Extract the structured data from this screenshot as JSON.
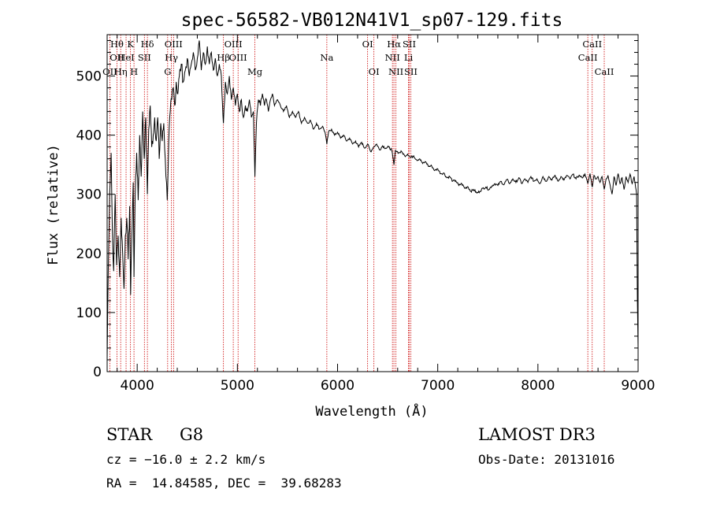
{
  "chart_data": {
    "type": "line",
    "title": "spec-56582-VB012N41V1_sp07-129.fits",
    "xlabel": "Wavelength (Å)",
    "ylabel": "Flux (relative)",
    "xlim": [
      3700,
      9000
    ],
    "ylim": [
      0,
      570
    ],
    "x_ticks": [
      4000,
      5000,
      6000,
      7000,
      8000,
      9000
    ],
    "y_ticks": [
      0,
      100,
      200,
      300,
      400,
      500
    ],
    "series": [
      {
        "name": "flux",
        "points": [
          [
            3700,
            20
          ],
          [
            3710,
            160
          ],
          [
            3725,
            300
          ],
          [
            3740,
            370
          ],
          [
            3752,
            240
          ],
          [
            3765,
            170
          ],
          [
            3780,
            300
          ],
          [
            3795,
            180
          ],
          [
            3810,
            230
          ],
          [
            3825,
            160
          ],
          [
            3840,
            260
          ],
          [
            3855,
            200
          ],
          [
            3868,
            140
          ],
          [
            3882,
            230
          ],
          [
            3896,
            260
          ],
          [
            3910,
            190
          ],
          [
            3925,
            280
          ],
          [
            3934,
            130
          ],
          [
            3945,
            220
          ],
          [
            3960,
            320
          ],
          [
            3968,
            160
          ],
          [
            3980,
            300
          ],
          [
            3995,
            370
          ],
          [
            4010,
            290
          ],
          [
            4025,
            400
          ],
          [
            4040,
            330
          ],
          [
            4055,
            440
          ],
          [
            4070,
            360
          ],
          [
            4085,
            430
          ],
          [
            4102,
            300
          ],
          [
            4115,
            410
          ],
          [
            4130,
            450
          ],
          [
            4145,
            380
          ],
          [
            4160,
            400
          ],
          [
            4175,
            430
          ],
          [
            4190,
            390
          ],
          [
            4205,
            430
          ],
          [
            4220,
            360
          ],
          [
            4235,
            420
          ],
          [
            4250,
            390
          ],
          [
            4265,
            420
          ],
          [
            4280,
            360
          ],
          [
            4300,
            290
          ],
          [
            4315,
            390
          ],
          [
            4330,
            440
          ],
          [
            4345,
            460
          ],
          [
            4360,
            480
          ],
          [
            4375,
            450
          ],
          [
            4390,
            490
          ],
          [
            4405,
            470
          ],
          [
            4420,
            500
          ],
          [
            4440,
            520
          ],
          [
            4460,
            490
          ],
          [
            4480,
            510
          ],
          [
            4500,
            530
          ],
          [
            4520,
            500
          ],
          [
            4540,
            520
          ],
          [
            4560,
            540
          ],
          [
            4580,
            510
          ],
          [
            4600,
            530
          ],
          [
            4620,
            560
          ],
          [
            4640,
            510
          ],
          [
            4660,
            540
          ],
          [
            4680,
            520
          ],
          [
            4700,
            550
          ],
          [
            4720,
            520
          ],
          [
            4740,
            540
          ],
          [
            4760,
            510
          ],
          [
            4780,
            530
          ],
          [
            4800,
            500
          ],
          [
            4820,
            520
          ],
          [
            4840,
            500
          ],
          [
            4861,
            420
          ],
          [
            4880,
            490
          ],
          [
            4900,
            470
          ],
          [
            4920,
            500
          ],
          [
            4940,
            460
          ],
          [
            4960,
            480
          ],
          [
            4980,
            450
          ],
          [
            5000,
            470
          ],
          [
            5020,
            440
          ],
          [
            5040,
            460
          ],
          [
            5060,
            430
          ],
          [
            5080,
            450
          ],
          [
            5100,
            440
          ],
          [
            5120,
            460
          ],
          [
            5140,
            430
          ],
          [
            5160,
            440
          ],
          [
            5175,
            330
          ],
          [
            5190,
            420
          ],
          [
            5210,
            460
          ],
          [
            5230,
            450
          ],
          [
            5250,
            470
          ],
          [
            5270,
            450
          ],
          [
            5290,
            460
          ],
          [
            5310,
            440
          ],
          [
            5330,
            460
          ],
          [
            5350,
            470
          ],
          [
            5370,
            450
          ],
          [
            5400,
            460
          ],
          [
            5430,
            450
          ],
          [
            5460,
            440
          ],
          [
            5490,
            450
          ],
          [
            5520,
            430
          ],
          [
            5550,
            440
          ],
          [
            5580,
            430
          ],
          [
            5610,
            440
          ],
          [
            5640,
            420
          ],
          [
            5670,
            430
          ],
          [
            5700,
            420
          ],
          [
            5730,
            425
          ],
          [
            5760,
            410
          ],
          [
            5790,
            420
          ],
          [
            5820,
            410
          ],
          [
            5850,
            415
          ],
          [
            5875,
            405
          ],
          [
            5893,
            385
          ],
          [
            5910,
            405
          ],
          [
            5940,
            410
          ],
          [
            5970,
            400
          ],
          [
            6000,
            405
          ],
          [
            6030,
            395
          ],
          [
            6060,
            400
          ],
          [
            6090,
            390
          ],
          [
            6120,
            395
          ],
          [
            6150,
            385
          ],
          [
            6180,
            390
          ],
          [
            6210,
            380
          ],
          [
            6240,
            388
          ],
          [
            6270,
            378
          ],
          [
            6300,
            385
          ],
          [
            6330,
            372
          ],
          [
            6360,
            380
          ],
          [
            6390,
            385
          ],
          [
            6420,
            375
          ],
          [
            6450,
            382
          ],
          [
            6480,
            378
          ],
          [
            6510,
            380
          ],
          [
            6540,
            375
          ],
          [
            6563,
            350
          ],
          [
            6580,
            375
          ],
          [
            6610,
            370
          ],
          [
            6640,
            372
          ],
          [
            6670,
            365
          ],
          [
            6700,
            368
          ],
          [
            6730,
            362
          ],
          [
            6760,
            365
          ],
          [
            6790,
            358
          ],
          [
            6820,
            360
          ],
          [
            6850,
            352
          ],
          [
            6880,
            355
          ],
          [
            6910,
            347
          ],
          [
            6940,
            348
          ],
          [
            6970,
            340
          ],
          [
            7000,
            343
          ],
          [
            7030,
            335
          ],
          [
            7060,
            336
          ],
          [
            7090,
            328
          ],
          [
            7120,
            330
          ],
          [
            7150,
            322
          ],
          [
            7180,
            323
          ],
          [
            7210,
            315
          ],
          [
            7240,
            318
          ],
          [
            7270,
            310
          ],
          [
            7300,
            313
          ],
          [
            7330,
            305
          ],
          [
            7360,
            308
          ],
          [
            7390,
            302
          ],
          [
            7420,
            305
          ],
          [
            7450,
            310
          ],
          [
            7480,
            312
          ],
          [
            7510,
            308
          ],
          [
            7540,
            314
          ],
          [
            7570,
            318
          ],
          [
            7600,
            315
          ],
          [
            7630,
            322
          ],
          [
            7660,
            316
          ],
          [
            7690,
            325
          ],
          [
            7720,
            318
          ],
          [
            7750,
            326
          ],
          [
            7780,
            320
          ],
          [
            7810,
            328
          ],
          [
            7840,
            318
          ],
          [
            7870,
            326
          ],
          [
            7900,
            320
          ],
          [
            7930,
            330
          ],
          [
            7960,
            322
          ],
          [
            7990,
            326
          ],
          [
            8020,
            318
          ],
          [
            8050,
            330
          ],
          [
            8080,
            322
          ],
          [
            8110,
            330
          ],
          [
            8140,
            324
          ],
          [
            8170,
            332
          ],
          [
            8200,
            322
          ],
          [
            8230,
            330
          ],
          [
            8260,
            324
          ],
          [
            8290,
            332
          ],
          [
            8320,
            326
          ],
          [
            8350,
            334
          ],
          [
            8380,
            326
          ],
          [
            8410,
            332
          ],
          [
            8440,
            328
          ],
          [
            8470,
            334
          ],
          [
            8498,
            318
          ],
          [
            8520,
            335
          ],
          [
            8542,
            312
          ],
          [
            8560,
            332
          ],
          [
            8580,
            326
          ],
          [
            8600,
            330
          ],
          [
            8620,
            320
          ],
          [
            8640,
            330
          ],
          [
            8662,
            308
          ],
          [
            8680,
            326
          ],
          [
            8700,
            332
          ],
          [
            8720,
            316
          ],
          [
            8740,
            300
          ],
          [
            8760,
            330
          ],
          [
            8780,
            315
          ],
          [
            8800,
            335
          ],
          [
            8820,
            318
          ],
          [
            8840,
            328
          ],
          [
            8860,
            308
          ],
          [
            8880,
            330
          ],
          [
            8900,
            320
          ],
          [
            8920,
            334
          ],
          [
            8940,
            318
          ],
          [
            8960,
            330
          ],
          [
            8975,
            312
          ],
          [
            8985,
            300
          ],
          [
            8993,
            120
          ],
          [
            9000,
            40
          ]
        ]
      }
    ],
    "line_markers": [
      {
        "wavelength": 3727,
        "labels": [
          {
            "text": "OII",
            "row": 2
          }
        ]
      },
      {
        "wavelength": 3798,
        "labels": [
          {
            "text": "Hθ",
            "row": 0
          },
          {
            "text": "OII",
            "row": 1
          }
        ]
      },
      {
        "wavelength": 3835,
        "labels": [
          {
            "text": "Hη",
            "row": 2
          }
        ]
      },
      {
        "wavelength": 3889,
        "labels": [
          {
            "text": "HeI",
            "row": 1
          }
        ]
      },
      {
        "wavelength": 3933,
        "labels": [
          {
            "text": "K",
            "row": 0
          }
        ]
      },
      {
        "wavelength": 3968,
        "labels": [
          {
            "text": "H",
            "row": 2
          }
        ]
      },
      {
        "wavelength": 4072,
        "labels": [
          {
            "text": "SII",
            "row": 1
          }
        ]
      },
      {
        "wavelength": 4102,
        "labels": [
          {
            "text": "Hδ",
            "row": 0
          }
        ]
      },
      {
        "wavelength": 4304,
        "labels": [
          {
            "text": "G",
            "row": 2
          }
        ]
      },
      {
        "wavelength": 4341,
        "labels": [
          {
            "text": "Hγ",
            "row": 1
          }
        ]
      },
      {
        "wavelength": 4363,
        "labels": [
          {
            "text": "OIII",
            "row": 0
          }
        ]
      },
      {
        "wavelength": 4861,
        "labels": [
          {
            "text": "Hβ",
            "row": 1
          }
        ]
      },
      {
        "wavelength": 4959,
        "labels": [
          {
            "text": "OIII",
            "row": 0
          }
        ]
      },
      {
        "wavelength": 5007,
        "labels": [
          {
            "text": "OIII",
            "row": 1
          }
        ]
      },
      {
        "wavelength": 5175,
        "labels": [
          {
            "text": "Mg",
            "row": 2
          }
        ]
      },
      {
        "wavelength": 5893,
        "labels": [
          {
            "text": "Na",
            "row": 1
          }
        ]
      },
      {
        "wavelength": 6300,
        "labels": [
          {
            "text": "OI",
            "row": 0
          }
        ]
      },
      {
        "wavelength": 6363,
        "labels": [
          {
            "text": "OI",
            "row": 2
          }
        ]
      },
      {
        "wavelength": 6548,
        "labels": [
          {
            "text": "NII",
            "row": 1
          }
        ]
      },
      {
        "wavelength": 6563,
        "labels": [
          {
            "text": "Hα",
            "row": 0
          }
        ]
      },
      {
        "wavelength": 6583,
        "labels": [
          {
            "text": "NII",
            "row": 2
          }
        ]
      },
      {
        "wavelength": 6708,
        "labels": [
          {
            "text": "Li",
            "row": 1
          }
        ]
      },
      {
        "wavelength": 6716,
        "labels": [
          {
            "text": "SII",
            "row": 0
          }
        ]
      },
      {
        "wavelength": 6731,
        "labels": [
          {
            "text": "SII",
            "row": 2
          }
        ]
      },
      {
        "wavelength": 8498,
        "labels": [
          {
            "text": "CaII",
            "row": 1
          }
        ]
      },
      {
        "wavelength": 8542,
        "labels": [
          {
            "text": "CaII",
            "row": 0
          }
        ]
      },
      {
        "wavelength": 8662,
        "labels": [
          {
            "text": "CaII",
            "row": 2
          }
        ]
      }
    ],
    "colors": {
      "line": "#000000",
      "marker": "#cc0000"
    }
  },
  "footer": {
    "class_label": "STAR",
    "subclass": "G8",
    "survey": "LAMOST DR3",
    "cz_text": "cz = −16.0 ± 2.2 km/s",
    "obs_date_text": "Obs-Date: 20131016",
    "radec_text": "RA =  14.84585, DEC =  39.68283"
  }
}
